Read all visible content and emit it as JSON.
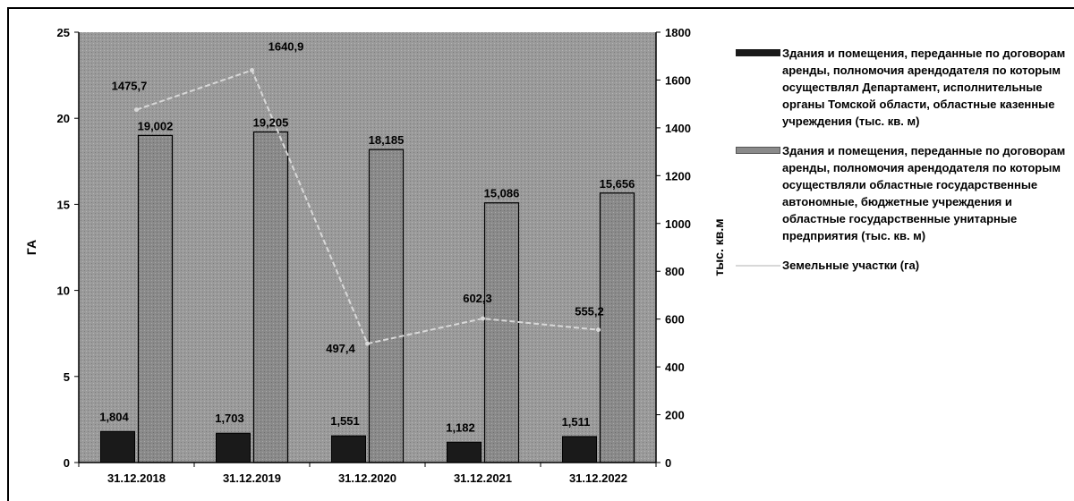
{
  "chart_data": {
    "type": "bar",
    "categories": [
      "31.12.2018",
      "31.12.2019",
      "31.12.2020",
      "31.12.2021",
      "31.12.2022"
    ],
    "series": [
      {
        "name": "Здания и помещения, переданные по договорам аренды, полномочия арендодателя по которым осуществлял Департамент, исполнительные органы Томской области, областные казенные учреждения (тыс. кв. м)",
        "axis": "left",
        "kind": "bar",
        "color": "#1a1a1a",
        "values": [
          1.804,
          1.703,
          1.551,
          1.182,
          1.511
        ],
        "labels": [
          "1,804",
          "1,703",
          "1,551",
          "1,182",
          "1,511"
        ]
      },
      {
        "name": "Здания и помещения, переданные по договорам аренды, полномочия арендодателя по которым осуществляли областные государственные автономные, бюджетные учреждения и областные государственные унитарные предприятия (тыс. кв. м)",
        "axis": "left",
        "kind": "bar",
        "color": "#8a8a8a",
        "values": [
          19.002,
          19.205,
          18.185,
          15.086,
          15.656
        ],
        "labels": [
          "19,002",
          "19,205",
          "18,185",
          "15,086",
          "15,656"
        ]
      },
      {
        "name": "Земельные участки (га)",
        "axis": "right",
        "kind": "line",
        "color": "#d8d8d8",
        "values": [
          1475.7,
          1640.9,
          497.4,
          602.3,
          555.2
        ],
        "labels": [
          "1475,7",
          "1640,9",
          "497,4",
          "602,3",
          "555,2"
        ]
      }
    ],
    "ylabel": "ГА",
    "y2label": "тыс. кв.м",
    "ylim": [
      0,
      25
    ],
    "y2lim": [
      0,
      1800
    ],
    "yticks": [
      "0",
      "5",
      "10",
      "15",
      "20",
      "25"
    ],
    "y2ticks": [
      "0",
      "200",
      "400",
      "600",
      "800",
      "1000",
      "1200",
      "1400",
      "1600",
      "1800"
    ],
    "plot_background": "#9a9a9a",
    "grid": false,
    "legend_position": "right"
  }
}
